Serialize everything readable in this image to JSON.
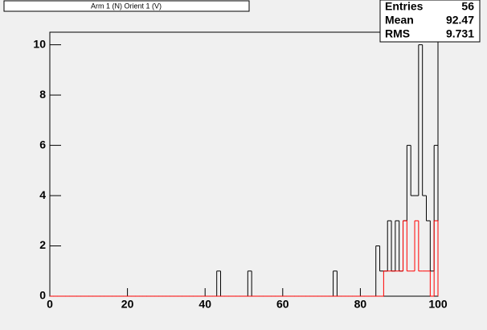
{
  "chart_data": {
    "type": "histogram",
    "title": "Arm 1 (N) Orient 1 (V)",
    "bins": [
      0,
      1,
      2,
      3,
      4,
      5,
      6,
      7,
      8,
      9,
      10,
      11,
      12,
      13,
      14,
      15,
      16,
      17,
      18,
      19,
      20,
      21,
      22,
      23,
      24,
      25,
      26,
      27,
      28,
      29,
      30,
      31,
      32,
      33,
      34,
      35,
      36,
      37,
      38,
      39,
      40,
      41,
      42,
      43,
      44,
      45,
      46,
      47,
      48,
      49,
      50,
      51,
      52,
      53,
      54,
      55,
      56,
      57,
      58,
      59,
      60,
      61,
      62,
      63,
      64,
      65,
      66,
      67,
      68,
      69,
      70,
      71,
      72,
      73,
      74,
      75,
      76,
      77,
      78,
      79,
      80,
      81,
      82,
      83,
      84,
      85,
      86,
      87,
      88,
      89,
      90,
      91,
      92,
      93,
      94,
      95,
      96,
      97,
      98,
      99,
      100
    ],
    "series": [
      {
        "color": "#000000",
        "values": [
          0,
          0,
          0,
          0,
          0,
          0,
          0,
          0,
          0,
          0,
          0,
          0,
          0,
          0,
          0,
          0,
          0,
          0,
          0,
          0,
          0,
          0,
          0,
          0,
          0,
          0,
          0,
          0,
          0,
          0,
          0,
          0,
          0,
          0,
          0,
          0,
          0,
          0,
          0,
          0,
          0,
          0,
          0,
          1,
          0,
          0,
          0,
          0,
          0,
          0,
          0,
          1,
          0,
          0,
          0,
          0,
          0,
          0,
          0,
          0,
          0,
          0,
          0,
          0,
          0,
          0,
          0,
          0,
          0,
          0,
          0,
          0,
          0,
          1,
          0,
          0,
          0,
          0,
          0,
          0,
          0,
          0,
          0,
          0,
          2,
          1,
          1,
          3,
          1,
          3,
          1,
          3,
          6,
          4,
          4,
          10,
          4,
          3,
          1,
          6
        ]
      },
      {
        "color": "#ff0000",
        "values": [
          0,
          0,
          0,
          0,
          0,
          0,
          0,
          0,
          0,
          0,
          0,
          0,
          0,
          0,
          0,
          0,
          0,
          0,
          0,
          0,
          0,
          0,
          0,
          0,
          0,
          0,
          0,
          0,
          0,
          0,
          0,
          0,
          0,
          0,
          0,
          0,
          0,
          0,
          0,
          0,
          0,
          0,
          0,
          0,
          0,
          0,
          0,
          0,
          0,
          0,
          0,
          0,
          0,
          0,
          0,
          0,
          0,
          0,
          0,
          0,
          0,
          0,
          0,
          0,
          0,
          0,
          0,
          0,
          0,
          0,
          0,
          0,
          0,
          0,
          0,
          0,
          0,
          0,
          0,
          0,
          0,
          0,
          0,
          0,
          0,
          0,
          1,
          1,
          1,
          1,
          1,
          3,
          1,
          1,
          3,
          1,
          1,
          1,
          0,
          3
        ]
      }
    ],
    "stats": [
      {
        "name": "Entries",
        "value": 56
      },
      {
        "name": "Mean",
        "value": 92.47
      },
      {
        "name": "RMS",
        "value": 9.731
      }
    ],
    "xlim": [
      0,
      100
    ],
    "xticks": [
      0,
      20,
      40,
      60,
      80,
      100
    ],
    "ylim": [
      0,
      10.5
    ],
    "yticks": [
      0,
      2,
      4,
      6,
      8,
      10
    ]
  }
}
